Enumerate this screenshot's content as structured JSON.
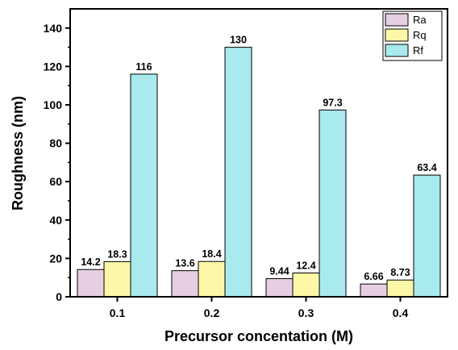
{
  "chart_data": {
    "type": "bar",
    "xlabel": "Precursor concentation (M)",
    "ylabel": "Roughness (nm)",
    "categories": [
      "0.1",
      "0.2",
      "0.3",
      "0.4"
    ],
    "ylim": [
      0,
      150
    ],
    "yticks": [
      "0",
      "20",
      "40",
      "60",
      "80",
      "100",
      "120",
      "140"
    ],
    "legend_position": "top-right",
    "grid": false,
    "series": [
      {
        "name": "Ra",
        "color": "#e6cfe3",
        "values": [
          14.2,
          13.6,
          9.44,
          6.66
        ],
        "labels": [
          "14.2",
          "13.6",
          "9.44",
          "6.66"
        ]
      },
      {
        "name": "Rq",
        "color": "#fbf7a6",
        "values": [
          18.3,
          18.4,
          12.4,
          8.73
        ],
        "labels": [
          "18.3",
          "18.4",
          "12.4",
          "8.73"
        ]
      },
      {
        "name": "Rf",
        "color": "#a8eaee",
        "values": [
          116,
          130,
          97.3,
          63.4
        ],
        "labels": [
          "116",
          "130",
          "97.3",
          "63.4"
        ]
      }
    ]
  }
}
